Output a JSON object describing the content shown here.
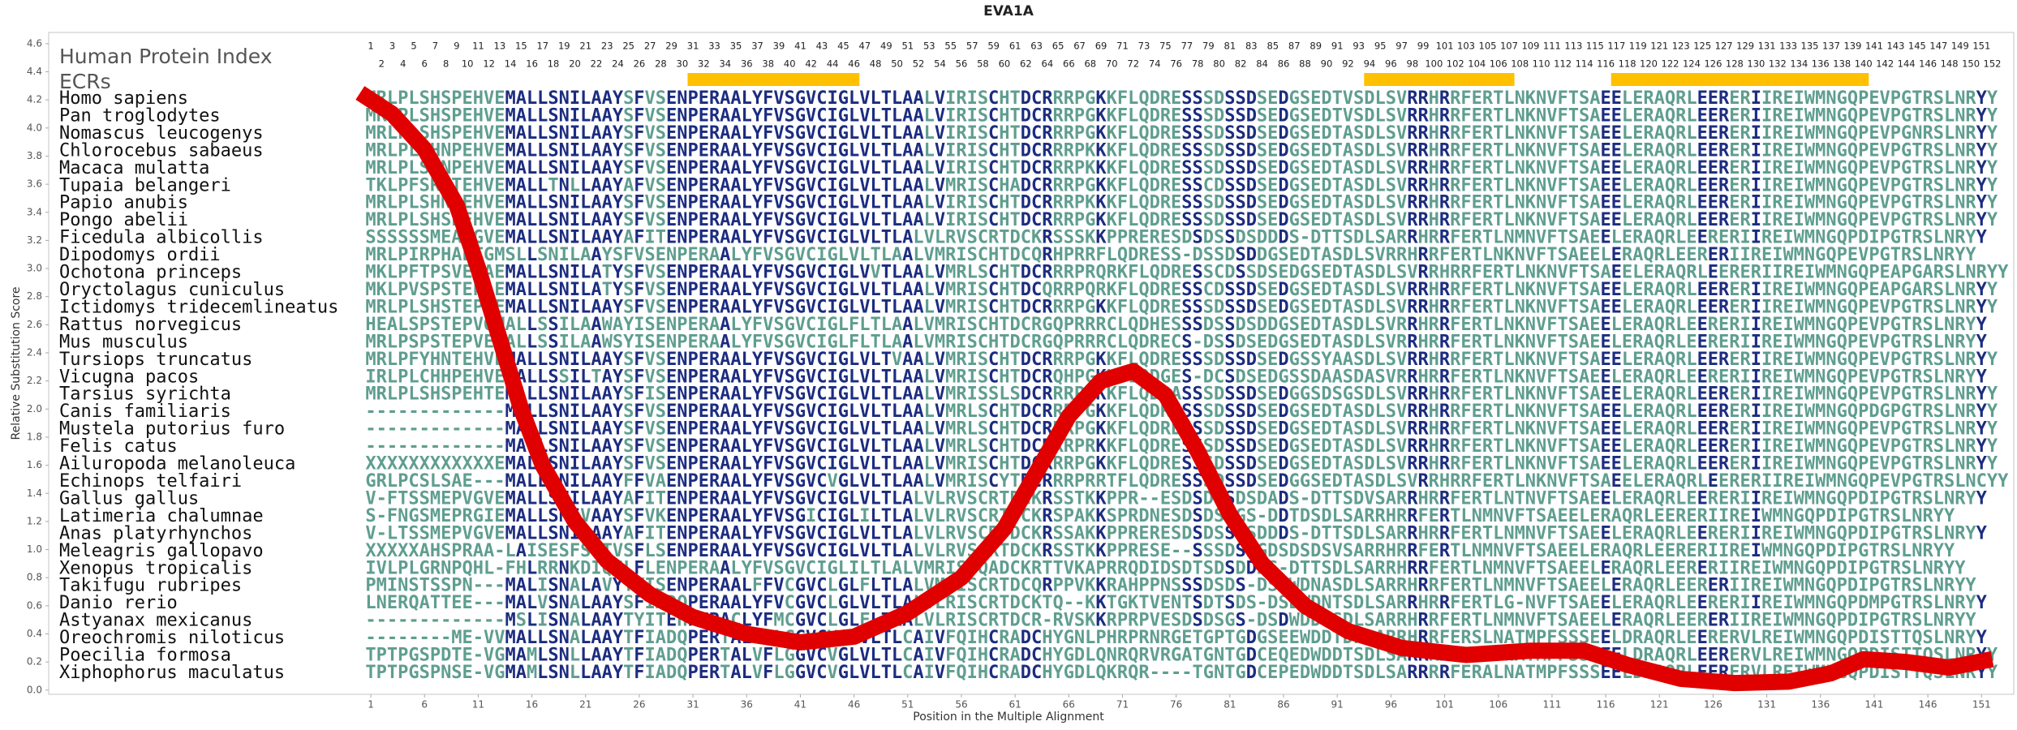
{
  "chart_data": {
    "type": "line",
    "title": "EVA1A",
    "xlabel": "Position in the Multiple Alignment",
    "ylabel": "Relative Substitution Score",
    "index_label": "Human Protein Index",
    "ecr_label": "ECRs",
    "color": "#e00000",
    "ecr_color": "#ffc000",
    "colors": {
      "conserved": "#1c2c80",
      "variable": "#5f9e8f"
    },
    "xlim": [
      -29,
      154
    ],
    "ylim": [
      -0.03,
      4.68
    ],
    "xticks": [
      1,
      6,
      11,
      16,
      21,
      26,
      31,
      36,
      41,
      46,
      51,
      56,
      61,
      66,
      71,
      76,
      81,
      86,
      91,
      96,
      101,
      106,
      111,
      116,
      121,
      126,
      131,
      136,
      141,
      146,
      151
    ],
    "yticks": [
      {
        "value": 0,
        "label": "0.0"
      },
      0.2,
      0.4,
      0.6,
      0.8,
      {
        "value": 1,
        "label": "1.0"
      },
      1.2,
      1.4,
      1.6,
      1.8,
      {
        "value": 2,
        "label": "2.0"
      },
      2.2,
      2.4,
      2.6,
      2.8,
      {
        "value": 3,
        "label": "3.0"
      },
      3.2,
      3.4,
      3.6,
      3.8,
      {
        "value": 4,
        "label": "4.0"
      },
      4.2,
      4.4,
      4.6
    ],
    "x": [
      0,
      3,
      6,
      9,
      11,
      13,
      15,
      17,
      20,
      23,
      27,
      31,
      36,
      41,
      46,
      51,
      56,
      60,
      63,
      66,
      69,
      72,
      75,
      78,
      81,
      84,
      88,
      92,
      97,
      103,
      109,
      114,
      118,
      123,
      128,
      133,
      137,
      140,
      144,
      148,
      152
    ],
    "values": [
      4.25,
      4.1,
      3.85,
      3.45,
      3.0,
      2.5,
      2.0,
      1.6,
      1.2,
      0.92,
      0.68,
      0.52,
      0.4,
      0.34,
      0.38,
      0.55,
      0.8,
      1.15,
      1.55,
      1.95,
      2.2,
      2.27,
      2.1,
      1.7,
      1.25,
      0.9,
      0.6,
      0.42,
      0.3,
      0.25,
      0.28,
      0.28,
      0.18,
      0.08,
      0.05,
      0.06,
      0.12,
      0.22,
      0.2,
      0.16,
      0.22
    ],
    "protein_index": [
      1,
      2,
      3,
      4,
      5,
      6,
      7,
      8,
      9,
      10,
      11,
      12,
      13,
      14,
      15,
      16,
      17,
      18,
      19,
      20,
      21,
      22,
      23,
      24,
      25,
      26,
      27,
      28,
      29,
      30,
      31,
      32,
      33,
      34,
      35,
      36,
      37,
      38,
      39,
      40,
      41,
      42,
      43,
      44,
      45,
      46,
      47,
      48,
      49,
      50,
      51,
      52,
      53,
      54,
      55,
      56,
      57,
      58,
      59,
      60,
      61,
      62,
      63,
      64,
      65,
      66,
      67,
      68,
      69,
      70,
      71,
      72,
      73,
      74,
      75,
      76,
      77,
      78,
      79,
      80,
      81,
      82,
      83,
      84,
      85,
      86,
      87,
      88,
      89,
      90,
      91,
      92,
      93,
      94,
      95,
      96,
      97,
      98,
      99,
      100,
      101,
      102,
      103,
      104,
      105,
      106,
      107,
      108,
      109,
      110,
      111,
      112,
      113,
      114,
      115,
      116,
      117,
      118,
      119,
      120,
      121,
      122,
      123,
      124,
      125,
      126,
      127,
      128,
      129,
      130,
      131,
      132,
      133,
      134,
      135,
      136,
      137,
      138,
      139,
      140,
      141,
      142,
      143,
      144,
      145,
      146,
      147,
      148,
      149,
      150,
      151,
      152
    ],
    "ecrs": [
      [
        31,
        46
      ],
      [
        94,
        107
      ],
      [
        117,
        140
      ]
    ],
    "alignment": [
      {
        "species": "Homo sapiens",
        "sequence": "MRLPLSHSPEHVEMALLSNILAAYSFVSENPERAALYFVSGVCIGLVLTLAALVIRISCHTDCRRRPGKKFLQDRESSSDSSDSEDGSEDTVSDLSVRRHRRFERTLNKNVFTSAEELERAQRLEERERIIREIWMNGQPEVPGTRSLNRYY"
      },
      {
        "species": "Pan troglodytes",
        "sequence": "MRLPLSHSPEHVEMALLSNILAAYSFVSENPERAALYFVSGVCIGLVLTLAALVIRISCHTDCRRRPGKKFLQDRESSSDSSDSEDGSEDTVSDLSVRRHRRFERTLNKNVFTSAEELERAQRLEERERIIREIWMNGQPEVPGTRSLNRYY"
      },
      {
        "species": "Nomascus leucogenys",
        "sequence": "MRLPLSHSPEHVEMALLSNILAAYSFVSENPERAALYFVSGVCIGLVLTLAALVIRISCHTDCRRRPGKKFLQDRESSSDSSDSEDGSEDTASDLSVRRHRRFERTLNKNVFTSAEELERAQRLEERERIIREIWMNGQPEVPGNRSLNRYY"
      },
      {
        "species": "Chlorocebus sabaeus",
        "sequence": "MRLPLSHNPEHVEMALLSNILAAYSFVSENPERAALYFVSGVCIGLVLTLAALVIRISCHTDCRRRPKKKFLQDRESSSDSSDSEDGSEDTASDLSVRRHRRFERTLNKNVFTSAEELERAQRLEERERIIREIWMNGQPEVPGTRSLNRYY"
      },
      {
        "species": "Macaca mulatta",
        "sequence": "MRLPLSHNPEHVEMALLSNILAAYSFVSENPERAALYFVSGVCIGLVLTLAALVIRISCHTDCRRRPKKKFLQDRESSSDSSDSEDGSEDTASDLSVRRHRRFERTLNKNVFTSAEELERAQRLEERERIIREIWMNGQPEVPGTRSLNRYY"
      },
      {
        "species": "Tupaia belangeri",
        "sequence": "TKLPFSRSTEHVEMALLTNLLAAYAFVSENPERAALYFVSGVCIGLVLTLAALVMRISCHADCRRRPGKKFLQDRESSCDSSDSEDGSEDTASDLSVRRHRRFERTLNKNVFTSAEELERAQRLEERERIIREIWMNGQPEVPGTRSLNRYY"
      },
      {
        "species": "Papio anubis",
        "sequence": "MRLPLSHNPEHVEMALLSNILAAYSFVSENPERAALYFVSGVCIGLVLTLAALVIRISCHTDCRRRPKKKFLQDRESSSDSSDSEDGSEDTASDLSVRRHRRFERTLNKNVFTSAEELERAQRLEERERIIREIWMNGQPEVPGTRSLNRYY"
      },
      {
        "species": "Pongo abelii",
        "sequence": "MRLPLSHSPEHVEMALLSNILAAYSFVSENPERAALYFVSGVCIGLVLTLAALVIRISCHTDCRRRPGKKFLQDRESSSDSSDSEDGSEDTASDLSVRRHRRFERTLNKNVFTSAEELERAQRLEERERIIREIWMNGQPEVPGTRSLNRYY"
      },
      {
        "species": "Ficedula albicollis",
        "sequence": "SSSSSSMEAVGVEMALLSNILAAYAFITENPERAALYFVSGVCIGLVLTLALVLRVSCRTDCKRSSSKKPPRERESDSDSSDSDDDS-DTTSDLSARRHRRFERTLNMNVFTSAEELERAQRLEERERIIREIWMNGQPDIPGTRSLNRYY"
      },
      {
        "species": "Dipodomys ordii",
        "sequence": "MRLPIRPHAETGMSLLSNILAAYSFVSENPERAALYFVSGVCIGLVLTLAALVMRISCHTDCQRHPRRFLQDRESS-DSSDSDDGSEDTASDLSVRRHRRFERTLNKNVFTSAEELERAQRLEERERIIREIWMNGQPEVPGTRSLNRYY"
      },
      {
        "species": "Ochotona princeps",
        "sequence": "MKLPFTPSVEPAEMALLSNILATYSFVSENPERAALYFVSGVCIGLVVTLAALVMRLSCHTDCRRRPRQRKFLQDRESSCDSSDSEDGSEDTASDLSVRRHRRFERTLNKNVFTSAEELERAQRLEERERIIREIWMNGQPEAPGARSLNRYY"
      },
      {
        "species": "Oryctolagus cuniculus",
        "sequence": "MKLPVSPSTEPAEMALLSNILATYSFVSENPERAALYFVSGVCIGLVLTLAALVMRISCHTDCQRRPQRKFLQDRESSCDSSDSEDGSEDTASDLSVRRHRRFERTLNKNVFTSAEELERAQRLEERERIIREIWMNGQPEAPGARSLNRYY"
      },
      {
        "species": "Ictidomys tridecemlineatus",
        "sequence": "MRLPLSHSTEPVEMALLSNILAAYSFVSENPERAALYFVSGVCIGLVLTLAALVMRISCHTDCRRRPGKKFLQDRESSSDSSDSEDGSEDTASDLSVRRHRRFERTLNKNVFTSAEELERAQRLEERERIIREIWMNGQPEVPGTRSLNRYY"
      },
      {
        "species": "Rattus norvegicus",
        "sequence": "HEALSPSTEPVQMALLSSILAAWAYISENPERAALYFVSGVCIGLFLTLAALVMRISCHTDCRGQPRRRCLQDHESSSDSSDSDDGSEDTASDLSVRRHRRFERTLNKNVFTSAEELERAQRLEERERIIREIWMNGQPEVPGTRSLNRYY"
      },
      {
        "species": "Mus musculus",
        "sequence": "MRLPSPSTEPVEMALLSSILAAWSYISENPERAALYFVSGVCIGLFLTLAALVMRISCHTDCRGQPRRRCLQDRECS-DSSDSEDGSEDTASDLSVRRHRRFERTLNKNVFTSAEELERAQRLEERERIIREIWMNGQPEVPGTRSLNRYY"
      },
      {
        "species": "Tursiops truncatus",
        "sequence": "MRLPFYHNTEHVEMALLSNILAAYSFVSENPERAALYFVSGVCIGLVLTVAALVMRISCHTDCRRRPGKKFLQDRESSSDSSDSEDGSSYAASDLSVRRHRRFERTLNKNVFTSAEELERAQRLEERERIIREIWMNGQPEVPGTRSLNRYY"
      },
      {
        "species": "Vicugna pacos",
        "sequence": "IRLPLCHHPEHVEMALLSSILTAYSFVSENPERAALYFVSGVCIGLVLTLAALVMRISCHTDCRQHPGKKFLQDGES-DCSDSEDGSSDAASDASVRRHRRFERTLNKNVFTSAEELERAQRLEERERIIREIWMNGQPEVPGTRSLNRYY"
      },
      {
        "species": "Tarsius syrichta",
        "sequence": "MRLPLSHSPEHTEMALLSNILAAYSFISENPERAALYFVSGVCIGLVLTLAALVMRISSLSDCRRRPGKKFLQDRASSSDSSDSEDGGSDSGSDLSVRRHRRFERTLNKNVFTSAEELERAQRLEERERIIREIWMNGQPEVPGTRSLNRYY"
      },
      {
        "species": "Canis familiaris",
        "sequence": "-------------MALLSNILAAYSFVSENPERAALYFVSGVCIGLVLTLAALVMRLSCHTDCRRRPGKKFLQDRESSSDSSDSEDGSEDTASDLSVRRHRRFERTLNKNVFTSAEELERAQRLEERERIIREIWMNGQPDGPGTRSLNRYY"
      },
      {
        "species": "Mustela putorius furo",
        "sequence": "-------------MALLSNILAAYSFVSENPERAALYFVSGVCIGLVLTLAALVMRLSCHTDCRRRPGKKFLQDRESSSDSSDSEDGSEDTASDLSVRRHRRFERTLNKNVFTSAEELERAQRLEERERIIREIWMNGQPEVPGTRSLNRYY"
      },
      {
        "species": "Felis catus",
        "sequence": "-------------MALLSNILAAYSFVSENPERAALYFVSGVCIGLVLTLAALVMRLSCHTDCRRRPRKKFLQDRESSSDSSDSEDGSEDTASDLSVRRHRRFERTLNKNVFTSAEELERAQRLEERERIIREIWMNGQPEVPGTRSLNRYY"
      },
      {
        "species": "Ailuropoda melanoleuca",
        "sequence": "XXXXXXXXXXXXEMALLSNILAAYSFVSENPERAALYFVSGVCIGLVLTLAALVMRISCHTDCRRRPGKKFLQDRESSSDSSDSEDGSEDTASDLSVRRHRRFERTLNKNVFTSAEELERAQRLEERERIIREIWMNGQPEVPGTRSLNRYY"
      },
      {
        "species": "Echinops telfairi",
        "sequence": "GRLPCSLSAE---MALLSNILAAYFFVAENPERAALYFVSGVCVGLVLTLAALVMRISCYTDCRRRPRRTFLQDRESSSDSSDSEDGGSEDTASDLSVRRHRRFERTLNKNVFTSAEELERAQRLEERERIIREIWMNGQPEVPGTRSLNCYY"
      },
      {
        "species": "Gallus gallus",
        "sequence": "V-FTSSMEPVGVEMALLSNILAAYAFITENPERAALYFVSGVCIGLVLTLALVLRVSCRTDCKRSSTKKPPR--ESDSDSSDSDADS-DTTSDVSARRHRRFERTLNTNVFTSAEELERAQRLEERERIIREIWMNGQPDIPGTRSLNRYY"
      },
      {
        "species": "Latimeria chalumnae",
        "sequence": "S-FNGSMEPRGIEMALLSNIVAAYSFVKENPERAALYFVSGICIGLILTLALVLRVSCRTDCKRSPAKKSPRDNESDSDSSGS-DDTDSDLSARRHRRFERTLNMNVFTSAEELERAQRLEERERIIREIWMNGQPDIPGTRSLNRYY"
      },
      {
        "species": "Anas platyrhynchos",
        "sequence": "V-LTSSMEPVGVEMALLSNILAAYAFITENPERAALYFVSGVCIGLVLTLALVLRVSCRTDCKRSSAKKPPRERESDSDSSDSDDDS-DTTSDLSARRHRRFERTLNMNVFTSAEELERAQRLEERERIIREIWMNGQPDIPGTRSLNRYY"
      },
      {
        "species": "Meleagris gallopavo",
        "sequence": "XXXXXAHSPRAA-LAISESFSSTVSFLSENPERAALYFVSGVCIGLVLTLALVLRVSCRTDCKRSSTKKPPRESE--SSSDSDGDSDSDSVSARRHRRFERTLNMNVFTSAEELERAQRLEERERIIREIWMNGQPDIPGTRSLNRYY"
      },
      {
        "species": "Xenopus tropicalis",
        "sequence": "IVLPLGRNPQHL-FHLRRNKDIQCLFLENPERAALYFVSGVCIGLILTLALVMRISCQADCKRTTVKAPRRQDIDSDTSDSDDDS-DTTSDLSARRHRRFERTLNMNVFTSAEELERAQRLEERERIIREIWMNGQPDIPGTRSLNRYY"
      },
      {
        "species": "Takifugu rubripes",
        "sequence": "PMINSTSSPN---MALISNALAVYTYISENPERAALFFVCGVCLGLFLTLALVMRISCRTDCQRPPVKKRAHPPNSSSDSDS-DSDWDNASDLSARRHRRFERTLNMNVFTSAEELERAQRLEERERIIREIWMNGQPDIPGTRSLNRYY"
      },
      {
        "species": "Danio rerio",
        "sequence": "LNERQATTEE---MALVSNALAAYSFIADQPERAALYFVCGVCLGLVLTLALVLRISCRTDCKTQ--KKTGKTVENTSDTSDS-DSDWDNTSDLSARRHRRFERTLG-NVFTSAEELERAQRLEERERIIREIWMNGQPDMPGTRSLNRYY"
      },
      {
        "species": "Astyanax mexicanus",
        "sequence": "-------------MSLISNALAAYTYITEHPERACLYFMCGVCLGLFLTLALVLRISCRTDCR-RVSKKRPRPVESDSDSGS-DSDWDDTSDLSARRHRRFERTLNMNVFTSAEELERAQRLEERERIIREIWMNGQPDIPGTRSLNRYY"
      },
      {
        "species": "Oreochromis niloticus",
        "sequence": "--------ME-VVMALLSNALAAYTFIADQPERTALVFLGGVCVGLVLTLCAIVFQIHCRADCHYGNLPHRPRNRGETGPTGDGSEEWDDTDPSARRHRRFERSLNATMPFSSSEELDRAQRLEERERVLREIWMNGQPDISTTQSLNRYY"
      },
      {
        "species": "Poecilia formosa",
        "sequence": "TPTPGSPDTE-VGMAMLSNLLAAYTFIADQPERTALVFLGGVCVGLVLTLCAIVFQIHCRADCHYGDLQNRQRVRGATGNTGDCEQEDWDDTSDLSARRRRFERALNATMPFSSSEELDRAQRLEERERVLREIWMNGQPDISTTQSLNRYY"
      },
      {
        "species": "Xiphophorus maculatus",
        "sequence": "TPTPGSPNSE-VGMAMLSNLLAAYTFIADQPERTALVFLGGVCVGLVLTLCAIVFQIHCRADCHYGDLQKRQR----TGNTGDCEPEDWDDTSDLSARRRRFERALNATMPFSSSEELDRAQRLEERERVLREIWMNGQPDISTTQSLNRYY"
      }
    ]
  }
}
